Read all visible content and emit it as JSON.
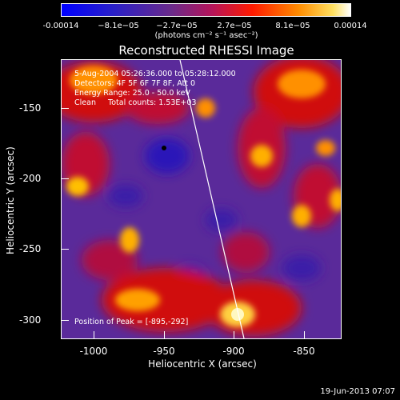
{
  "colorbar": {
    "ticks": [
      "-0.00014",
      "−8.1e−05",
      "−2.7e−05",
      "2.7e−05",
      "8.1e−05",
      "0.00014"
    ],
    "units": "(photons cm⁻² s⁻¹ asec⁻²)"
  },
  "title": "Reconstructed RHESSI Image",
  "info": {
    "time": "5-Aug-2004 05:26:36.000 to 05:28:12.000",
    "detectors": "Detectors: 4F 5F 6F 7F 8F, Att 0",
    "energy": "Energy Range: 25.0 - 50.0 keV",
    "clean": "Clean     Total counts: 1.53E+03"
  },
  "peak_label": "Position of Peak = [-895,-292]",
  "axes": {
    "xlabel": "Heliocentric X (arcsec)",
    "ylabel": "Heliocentric Y (arcsec)",
    "xticks": [
      "-1000",
      "-950",
      "-900",
      "-850"
    ],
    "yticks": [
      "-150",
      "-200",
      "-250",
      "-300"
    ]
  },
  "timestamp": "19-Jun-2013 07:07",
  "colors": {
    "low": "#0000ff",
    "mid": "#5a2a9a",
    "high": "#ffffff",
    "accent": "#ff2a00"
  }
}
